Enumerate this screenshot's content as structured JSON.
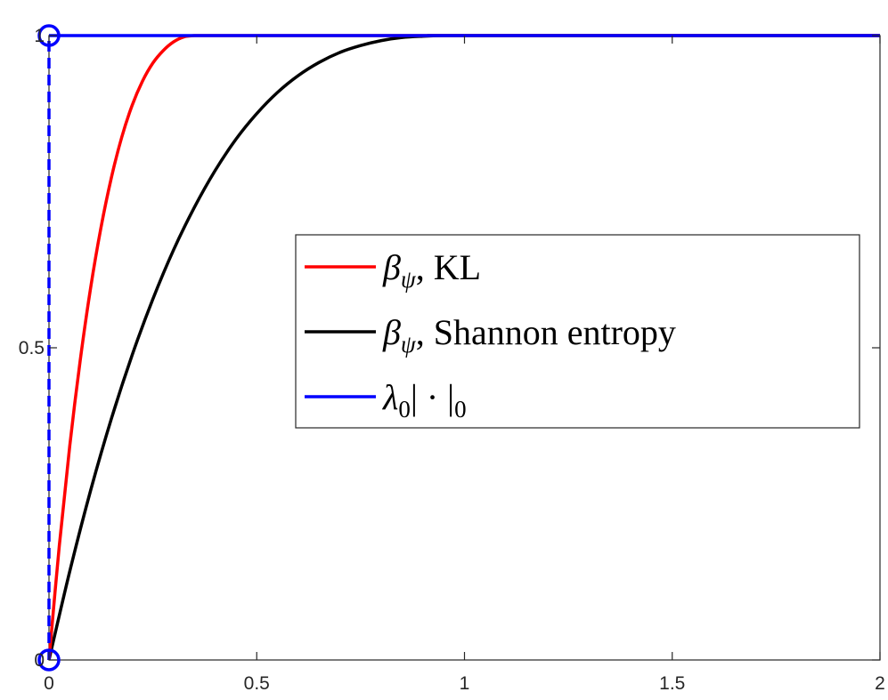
{
  "chart_data": {
    "type": "line",
    "title": "",
    "xlabel": "",
    "ylabel": "",
    "xlim": [
      0,
      2
    ],
    "ylim": [
      0,
      1
    ],
    "xticks": [
      0,
      0.5,
      1,
      1.5,
      2
    ],
    "xtick_labels": [
      "0",
      "0.5",
      "1",
      "1.5",
      "2"
    ],
    "yticks": [
      0,
      0.5,
      1
    ],
    "ytick_labels": [
      "0",
      "0.5",
      "1"
    ],
    "grid": false,
    "legend_position": "center-right",
    "series": [
      {
        "name": "β_ψ, KL",
        "color": "#ff0000",
        "x": [
          0,
          0.025,
          0.05,
          0.075,
          0.1,
          0.125,
          0.15,
          0.175,
          0.2,
          0.225,
          0.25,
          0.275,
          0.3,
          0.325,
          0.35,
          0.375,
          0.4,
          0.425,
          0.45,
          0.475,
          0.5,
          2
        ],
        "y": [
          0,
          0.184,
          0.343,
          0.479,
          0.595,
          0.692,
          0.772,
          0.837,
          0.888,
          0.927,
          0.956,
          0.976,
          0.99,
          0.998,
          1,
          1,
          1,
          1,
          1,
          1,
          1,
          1
        ]
      },
      {
        "name": "β_ψ, Shannon entropy",
        "color": "#000000",
        "x": [
          0,
          0.05,
          0.1,
          0.15,
          0.2,
          0.25,
          0.3,
          0.35,
          0.4,
          0.45,
          0.5,
          0.55,
          0.6,
          0.65,
          0.7,
          0.75,
          0.8,
          0.85,
          0.9,
          0.95,
          1,
          2
        ],
        "y": [
          0,
          0.142,
          0.271,
          0.386,
          0.488,
          0.578,
          0.657,
          0.725,
          0.784,
          0.834,
          0.875,
          0.909,
          0.936,
          0.957,
          0.973,
          0.984,
          0.992,
          0.997,
          0.999,
          1,
          1,
          1
        ]
      },
      {
        "name": "λ_0|·|_0",
        "color": "#0000ff",
        "x": [
          0,
          2
        ],
        "y": [
          1,
          1
        ],
        "vertical_jump_at": 0,
        "open_markers": [
          [
            0,
            0
          ],
          [
            0,
            1
          ]
        ]
      }
    ],
    "legend": {
      "entries": [
        {
          "main": "β",
          "sub": "ψ",
          "tail": ", KL"
        },
        {
          "main": "β",
          "sub": "ψ",
          "tail": ", Shannon entropy"
        },
        {
          "main": "λ",
          "sub": "0",
          "tail": "| · |",
          "sub2": "0"
        }
      ]
    }
  }
}
